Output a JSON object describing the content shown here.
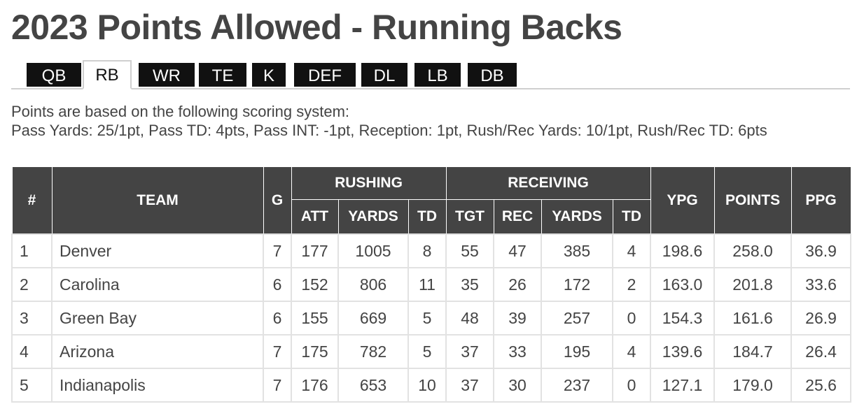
{
  "title": "2023 Points Allowed - Running Backs",
  "tabs": [
    {
      "label": "QB",
      "active": false
    },
    {
      "label": "RB",
      "active": true
    },
    {
      "label": "WR",
      "active": false
    },
    {
      "label": "TE",
      "active": false
    },
    {
      "label": "K",
      "active": false
    },
    {
      "label": "DEF",
      "active": false
    },
    {
      "label": "DL",
      "active": false
    },
    {
      "label": "LB",
      "active": false
    },
    {
      "label": "DB",
      "active": false
    }
  ],
  "scoring": {
    "line1": "Points are based on the following scoring system:",
    "line2": "Pass Yards: 25/1pt, Pass TD: 4pts, Pass INT: -1pt, Reception: 1pt, Rush/Rec Yards: 10/1pt, Rush/Rec TD: 6pts"
  },
  "table": {
    "headers": {
      "rank": "#",
      "team": "TEAM",
      "games": "G",
      "rushing": "RUSHING",
      "receiving": "RECEIVING",
      "ypg": "YPG",
      "points": "POINTS",
      "ppg": "PPG",
      "rush_att": "ATT",
      "rush_yards": "YARDS",
      "rush_td": "TD",
      "rec_tgt": "TGT",
      "rec_rec": "REC",
      "rec_yards": "YARDS",
      "rec_td": "TD"
    },
    "rows": [
      {
        "rank": "1",
        "team": "Denver",
        "g": "7",
        "att": "177",
        "ryds": "1005",
        "rtd": "8",
        "tgt": "55",
        "rec": "47",
        "cyds": "385",
        "ctd": "4",
        "ypg": "198.6",
        "points": "258.0",
        "ppg": "36.9"
      },
      {
        "rank": "2",
        "team": "Carolina",
        "g": "6",
        "att": "152",
        "ryds": "806",
        "rtd": "11",
        "tgt": "35",
        "rec": "26",
        "cyds": "172",
        "ctd": "2",
        "ypg": "163.0",
        "points": "201.8",
        "ppg": "33.6"
      },
      {
        "rank": "3",
        "team": "Green Bay",
        "g": "6",
        "att": "155",
        "ryds": "669",
        "rtd": "5",
        "tgt": "48",
        "rec": "39",
        "cyds": "257",
        "ctd": "0",
        "ypg": "154.3",
        "points": "161.6",
        "ppg": "26.9"
      },
      {
        "rank": "4",
        "team": "Arizona",
        "g": "7",
        "att": "175",
        "ryds": "782",
        "rtd": "5",
        "tgt": "37",
        "rec": "33",
        "cyds": "195",
        "ctd": "4",
        "ypg": "139.6",
        "points": "184.7",
        "ppg": "26.4"
      },
      {
        "rank": "5",
        "team": "Indianapolis",
        "g": "7",
        "att": "176",
        "ryds": "653",
        "rtd": "10",
        "tgt": "37",
        "rec": "30",
        "cyds": "237",
        "ctd": "0",
        "ypg": "127.1",
        "points": "179.0",
        "ppg": "25.6"
      }
    ]
  }
}
